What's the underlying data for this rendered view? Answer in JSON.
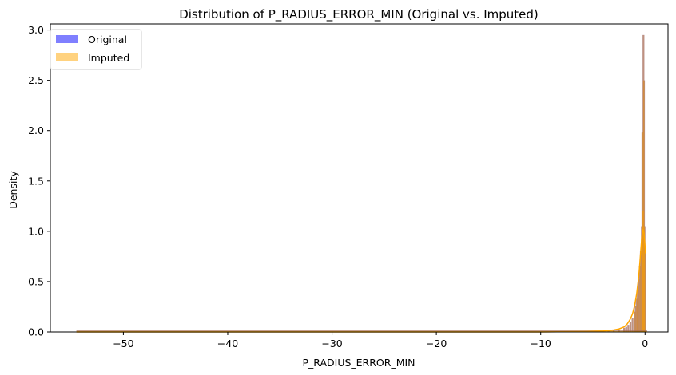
{
  "chart_data": {
    "type": "histogram",
    "title": "Distribution of P_RADIUS_ERROR_MIN (Original vs. Imputed)",
    "xlabel": "P_RADIUS_ERROR_MIN",
    "ylabel": "Density",
    "xlim": [
      -57,
      2.2
    ],
    "ylim": [
      0,
      3.06
    ],
    "x_ticks": [
      -50,
      -40,
      -30,
      -20,
      -10,
      0
    ],
    "x_tick_labels": [
      "−50",
      "−40",
      "−30",
      "−20",
      "−10",
      "0"
    ],
    "y_ticks": [
      0.0,
      0.5,
      1.0,
      1.5,
      2.0,
      2.5,
      3.0
    ],
    "y_tick_labels": [
      "0.0",
      "0.5",
      "1.0",
      "1.5",
      "2.0",
      "2.5",
      "3.0"
    ],
    "grid": false,
    "legend_position": "top-left",
    "data_range": [
      -54.5,
      0.2
    ],
    "series": [
      {
        "name": "Original",
        "color": "#0000ff",
        "alpha": 0.5,
        "bins": [
          {
            "x": -5.5,
            "density": 0.01
          },
          {
            "x": -4.5,
            "density": 0.01
          },
          {
            "x": -3.5,
            "density": 0.01
          },
          {
            "x": -3.0,
            "density": 0.02
          },
          {
            "x": -2.5,
            "density": 0.02
          },
          {
            "x": -2.0,
            "density": 0.04
          },
          {
            "x": -1.8,
            "density": 0.05
          },
          {
            "x": -1.6,
            "density": 0.07
          },
          {
            "x": -1.4,
            "density": 0.1
          },
          {
            "x": -1.2,
            "density": 0.14
          },
          {
            "x": -1.0,
            "density": 0.2
          },
          {
            "x": -0.9,
            "density": 0.26
          },
          {
            "x": -0.8,
            "density": 0.33
          },
          {
            "x": -0.7,
            "density": 0.42
          },
          {
            "x": -0.6,
            "density": 0.52
          },
          {
            "x": -0.5,
            "density": 0.65
          },
          {
            "x": -0.4,
            "density": 0.8
          },
          {
            "x": -0.3,
            "density": 1.05
          },
          {
            "x": -0.25,
            "density": 1.98
          },
          {
            "x": -0.2,
            "density": 1.2
          },
          {
            "x": -0.15,
            "density": 2.95
          },
          {
            "x": -0.1,
            "density": 2.5
          },
          {
            "x": -0.05,
            "density": 1.05
          },
          {
            "x": 0.0,
            "density": 0.8
          }
        ]
      },
      {
        "name": "Imputed",
        "color": "#ffa500",
        "alpha": 0.5,
        "bins": [
          {
            "x": -5.5,
            "density": 0.01
          },
          {
            "x": -4.5,
            "density": 0.01
          },
          {
            "x": -3.5,
            "density": 0.01
          },
          {
            "x": -3.0,
            "density": 0.02
          },
          {
            "x": -2.5,
            "density": 0.02
          },
          {
            "x": -2.0,
            "density": 0.04
          },
          {
            "x": -1.8,
            "density": 0.05
          },
          {
            "x": -1.6,
            "density": 0.07
          },
          {
            "x": -1.4,
            "density": 0.1
          },
          {
            "x": -1.2,
            "density": 0.14
          },
          {
            "x": -1.0,
            "density": 0.2
          },
          {
            "x": -0.9,
            "density": 0.26
          },
          {
            "x": -0.8,
            "density": 0.33
          },
          {
            "x": -0.7,
            "density": 0.42
          },
          {
            "x": -0.6,
            "density": 0.52
          },
          {
            "x": -0.5,
            "density": 0.65
          },
          {
            "x": -0.4,
            "density": 0.8
          },
          {
            "x": -0.3,
            "density": 1.05
          },
          {
            "x": -0.25,
            "density": 1.98
          },
          {
            "x": -0.2,
            "density": 1.2
          },
          {
            "x": -0.15,
            "density": 2.95
          },
          {
            "x": -0.1,
            "density": 2.5
          },
          {
            "x": -0.05,
            "density": 1.05
          },
          {
            "x": 0.0,
            "density": 0.8
          }
        ]
      }
    ],
    "kde": {
      "color": "#ffa500",
      "points": [
        [
          -54.5,
          0.0
        ],
        [
          -50,
          0.0
        ],
        [
          -40,
          0.0
        ],
        [
          -30,
          0.0
        ],
        [
          -20,
          0.0
        ],
        [
          -10,
          0.0
        ],
        [
          -6,
          0.005
        ],
        [
          -4,
          0.01
        ],
        [
          -3,
          0.02
        ],
        [
          -2.5,
          0.03
        ],
        [
          -2,
          0.05
        ],
        [
          -1.7,
          0.08
        ],
        [
          -1.4,
          0.13
        ],
        [
          -1.2,
          0.18
        ],
        [
          -1.0,
          0.26
        ],
        [
          -0.8,
          0.38
        ],
        [
          -0.6,
          0.55
        ],
        [
          -0.5,
          0.68
        ],
        [
          -0.4,
          0.82
        ],
        [
          -0.3,
          0.95
        ],
        [
          -0.2,
          1.02
        ],
        [
          -0.1,
          0.98
        ],
        [
          0.0,
          0.85
        ],
        [
          0.05,
          0.78
        ]
      ]
    }
  }
}
